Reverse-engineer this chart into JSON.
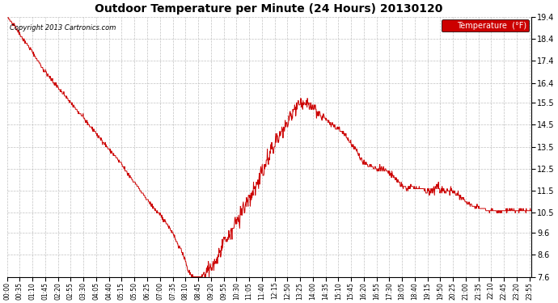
{
  "title": "Outdoor Temperature per Minute (24 Hours) 20130120",
  "copyright_text": "Copyright 2013 Cartronics.com",
  "legend_label": "Temperature  (°F)",
  "line_color": "#cc0000",
  "background_color": "#ffffff",
  "plot_bg_color": "#ffffff",
  "grid_color": "#bbbbbb",
  "legend_bg_color": "#cc0000",
  "legend_text_color": "#ffffff",
  "ylim": [
    7.6,
    19.4
  ],
  "yticks": [
    7.6,
    8.6,
    9.6,
    10.5,
    11.5,
    12.5,
    13.5,
    14.5,
    15.5,
    16.4,
    17.4,
    18.4,
    19.4
  ],
  "xtick_labels": [
    "00:00",
    "00:35",
    "01:10",
    "01:45",
    "02:20",
    "02:55",
    "03:30",
    "04:05",
    "04:40",
    "05:15",
    "05:50",
    "06:25",
    "07:00",
    "07:35",
    "08:10",
    "08:45",
    "09:20",
    "09:55",
    "10:30",
    "11:05",
    "11:40",
    "12:15",
    "12:50",
    "13:25",
    "14:00",
    "14:35",
    "15:10",
    "15:45",
    "16:20",
    "16:55",
    "17:30",
    "18:05",
    "18:40",
    "19:15",
    "19:50",
    "20:25",
    "21:00",
    "21:35",
    "22:10",
    "22:45",
    "23:20",
    "23:55"
  ],
  "num_minutes": 1440,
  "waypoints": [
    [
      0,
      19.4
    ],
    [
      20,
      19.0
    ],
    [
      40,
      18.5
    ],
    [
      70,
      17.8
    ],
    [
      100,
      17.0
    ],
    [
      130,
      16.4
    ],
    [
      160,
      15.8
    ],
    [
      190,
      15.2
    ],
    [
      210,
      14.8
    ],
    [
      240,
      14.2
    ],
    [
      260,
      13.8
    ],
    [
      290,
      13.2
    ],
    [
      310,
      12.8
    ],
    [
      330,
      12.3
    ],
    [
      355,
      11.8
    ],
    [
      375,
      11.3
    ],
    [
      400,
      10.8
    ],
    [
      420,
      10.4
    ],
    [
      440,
      10.0
    ],
    [
      455,
      9.6
    ],
    [
      465,
      9.2
    ],
    [
      475,
      8.9
    ],
    [
      485,
      8.6
    ],
    [
      490,
      8.3
    ],
    [
      495,
      8.0
    ],
    [
      500,
      7.8
    ],
    [
      505,
      7.7
    ],
    [
      510,
      7.65
    ],
    [
      515,
      7.6
    ],
    [
      520,
      7.6
    ],
    [
      525,
      7.6
    ],
    [
      530,
      7.6
    ],
    [
      535,
      7.65
    ],
    [
      540,
      7.7
    ],
    [
      545,
      7.75
    ],
    [
      550,
      7.8
    ],
    [
      555,
      7.9
    ],
    [
      560,
      8.0
    ],
    [
      565,
      8.1
    ],
    [
      570,
      8.2
    ],
    [
      575,
      8.35
    ],
    [
      580,
      8.5
    ],
    [
      585,
      8.7
    ],
    [
      590,
      8.9
    ],
    [
      595,
      9.1
    ],
    [
      600,
      9.3
    ],
    [
      605,
      9.2
    ],
    [
      610,
      9.5
    ],
    [
      615,
      9.7
    ],
    [
      618,
      9.4
    ],
    [
      622,
      9.8
    ],
    [
      625,
      10.0
    ],
    [
      630,
      10.2
    ],
    [
      635,
      10.4
    ],
    [
      638,
      10.2
    ],
    [
      642,
      10.5
    ],
    [
      648,
      10.8
    ],
    [
      652,
      10.6
    ],
    [
      658,
      11.0
    ],
    [
      665,
      11.3
    ],
    [
      668,
      11.1
    ],
    [
      672,
      11.4
    ],
    [
      678,
      11.7
    ],
    [
      682,
      11.5
    ],
    [
      686,
      11.8
    ],
    [
      690,
      12.0
    ],
    [
      695,
      12.2
    ],
    [
      700,
      12.5
    ],
    [
      705,
      12.3
    ],
    [
      710,
      12.7
    ],
    [
      715,
      13.0
    ],
    [
      718,
      12.8
    ],
    [
      722,
      13.2
    ],
    [
      727,
      13.5
    ],
    [
      732,
      13.3
    ],
    [
      737,
      13.7
    ],
    [
      742,
      14.0
    ],
    [
      746,
      13.7
    ],
    [
      750,
      14.0
    ],
    [
      755,
      14.3
    ],
    [
      758,
      14.1
    ],
    [
      762,
      14.4
    ],
    [
      767,
      14.6
    ],
    [
      770,
      14.4
    ],
    [
      774,
      14.7
    ],
    [
      778,
      15.0
    ],
    [
      782,
      14.8
    ],
    [
      786,
      15.1
    ],
    [
      790,
      15.3
    ],
    [
      793,
      15.1
    ],
    [
      797,
      15.4
    ],
    [
      800,
      15.5
    ],
    [
      803,
      15.3
    ],
    [
      807,
      15.5
    ],
    [
      810,
      15.4
    ],
    [
      815,
      15.5
    ],
    [
      820,
      15.4
    ],
    [
      825,
      15.5
    ],
    [
      830,
      15.3
    ],
    [
      835,
      15.4
    ],
    [
      840,
      15.2
    ],
    [
      845,
      15.3
    ],
    [
      850,
      15.1
    ],
    [
      855,
      15.0
    ],
    [
      860,
      14.9
    ],
    [
      865,
      14.8
    ],
    [
      870,
      14.9
    ],
    [
      875,
      14.8
    ],
    [
      880,
      14.7
    ],
    [
      885,
      14.6
    ],
    [
      890,
      14.5
    ],
    [
      895,
      14.5
    ],
    [
      900,
      14.4
    ],
    [
      910,
      14.3
    ],
    [
      920,
      14.2
    ],
    [
      930,
      14.0
    ],
    [
      940,
      13.8
    ],
    [
      950,
      13.5
    ],
    [
      960,
      13.3
    ],
    [
      970,
      13.0
    ],
    [
      980,
      12.8
    ],
    [
      990,
      12.7
    ],
    [
      1000,
      12.6
    ],
    [
      1010,
      12.5
    ],
    [
      1020,
      12.5
    ],
    [
      1030,
      12.5
    ],
    [
      1040,
      12.4
    ],
    [
      1050,
      12.3
    ],
    [
      1060,
      12.2
    ],
    [
      1070,
      12.0
    ],
    [
      1080,
      11.8
    ],
    [
      1085,
      11.7
    ],
    [
      1095,
      11.6
    ],
    [
      1100,
      11.6
    ],
    [
      1110,
      11.7
    ],
    [
      1120,
      11.6
    ],
    [
      1130,
      11.6
    ],
    [
      1140,
      11.6
    ],
    [
      1150,
      11.5
    ],
    [
      1160,
      11.5
    ],
    [
      1170,
      11.5
    ],
    [
      1180,
      11.7
    ],
    [
      1190,
      11.6
    ],
    [
      1200,
      11.5
    ],
    [
      1210,
      11.5
    ],
    [
      1220,
      11.5
    ],
    [
      1230,
      11.4
    ],
    [
      1240,
      11.3
    ],
    [
      1250,
      11.2
    ],
    [
      1260,
      11.0
    ],
    [
      1270,
      10.9
    ],
    [
      1280,
      10.8
    ],
    [
      1290,
      10.8
    ],
    [
      1300,
      10.7
    ],
    [
      1310,
      10.7
    ],
    [
      1320,
      10.6
    ],
    [
      1330,
      10.6
    ],
    [
      1340,
      10.6
    ],
    [
      1350,
      10.6
    ],
    [
      1360,
      10.6
    ],
    [
      1370,
      10.6
    ],
    [
      1380,
      10.6
    ],
    [
      1390,
      10.6
    ],
    [
      1400,
      10.6
    ],
    [
      1410,
      10.6
    ],
    [
      1420,
      10.6
    ],
    [
      1430,
      10.6
    ],
    [
      1439,
      10.6
    ]
  ]
}
